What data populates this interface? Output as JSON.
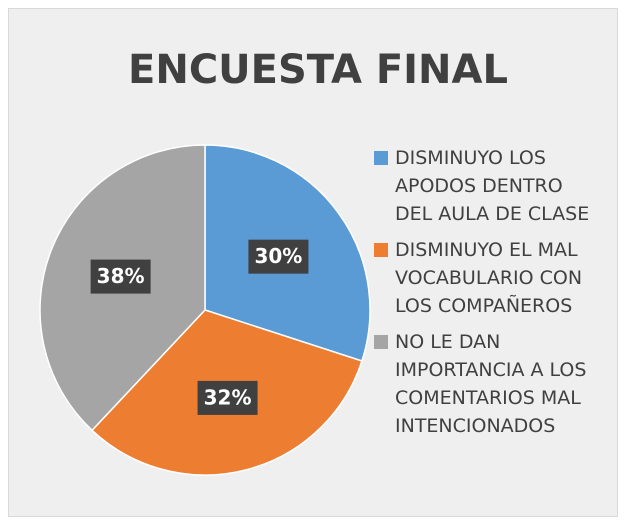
{
  "chart_data": {
    "type": "pie",
    "title": "ENCUESTA FINAL",
    "categories": [
      "DISMINUYO LOS APODOS DENTRO DEL AULA DE CLASE",
      "DISMINUYO EL MAL VOCABULARIO CON LOS COMPAÑEROS",
      "NO LE DAN IMPORTANCIA A LOS COMENTARIOS MAL INTENCIONADOS"
    ],
    "values": [
      30,
      32,
      38
    ],
    "value_labels": [
      "30%",
      "32%",
      "38%"
    ],
    "colors": [
      "#5b9bd5",
      "#ed7d31",
      "#a5a5a5"
    ],
    "legend": "right"
  }
}
